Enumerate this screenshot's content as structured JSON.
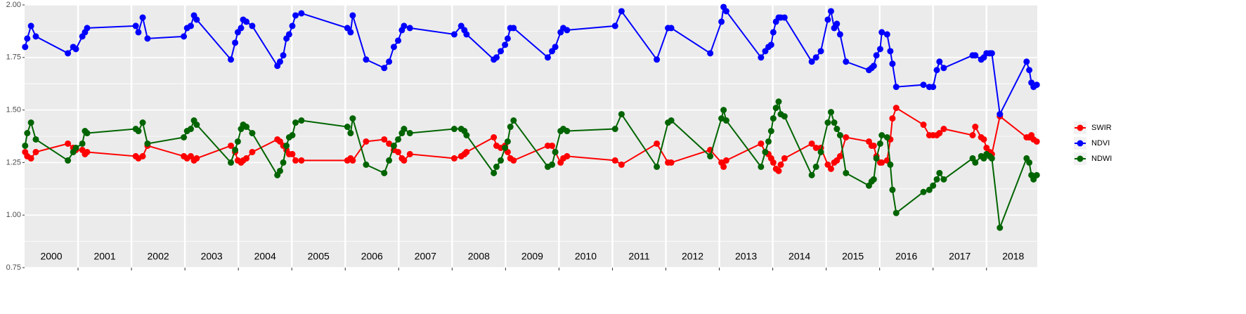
{
  "chart_data": {
    "type": "line",
    "x": [
      2000.01,
      2000.05,
      2000.12,
      2000.21,
      2000.81,
      2000.91,
      2000.96,
      2001.08,
      2001.13,
      2001.17,
      2002.08,
      2002.13,
      2002.21,
      2002.3,
      2002.98,
      2003.04,
      2003.11,
      2003.17,
      2003.22,
      2003.86,
      2003.94,
      2003.99,
      2004.05,
      2004.09,
      2004.15,
      2004.26,
      2004.73,
      2004.78,
      2004.84,
      2004.9,
      2004.95,
      2005.01,
      2005.07,
      2005.18,
      2006.04,
      2006.1,
      2006.14,
      2006.39,
      2006.73,
      2006.82,
      2006.91,
      2006.99,
      2007.06,
      2007.1,
      2007.21,
      2008.04,
      2008.17,
      2008.23,
      2008.27,
      2008.78,
      2008.83,
      2008.91,
      2008.99,
      2009.04,
      2009.09,
      2009.15,
      2009.79,
      2009.87,
      2009.93,
      2010.03,
      2010.08,
      2010.15,
      2011.05,
      2011.17,
      2011.83,
      2012.04,
      2012.1,
      2012.83,
      2013.04,
      2013.08,
      2013.13,
      2013.78,
      2013.86,
      2013.92,
      2013.97,
      2014.01,
      2014.06,
      2014.11,
      2014.15,
      2014.22,
      2014.73,
      2014.81,
      2014.9,
      2015.03,
      2015.09,
      2015.15,
      2015.2,
      2015.26,
      2015.37,
      2015.8,
      2015.85,
      2015.89,
      2015.94,
      2016.01,
      2016.04,
      2016.14,
      2016.2,
      2016.24,
      2016.31,
      2016.82,
      2016.93,
      2017.0,
      2017.07,
      2017.12,
      2017.2,
      2017.74,
      2017.79,
      2017.9,
      2017.95,
      2018.0,
      2018.06,
      2018.1,
      2018.25,
      2018.75,
      2018.8,
      2018.84,
      2018.88,
      2018.94
    ],
    "series": [
      {
        "name": "SWIR",
        "color": "#ff0000",
        "values": [
          1.3,
          1.28,
          1.27,
          1.3,
          1.34,
          1.32,
          1.31,
          1.31,
          1.29,
          1.3,
          1.28,
          1.27,
          1.28,
          1.33,
          1.28,
          1.27,
          1.28,
          1.26,
          1.27,
          1.33,
          1.3,
          1.26,
          1.25,
          1.26,
          1.27,
          1.3,
          1.36,
          1.35,
          1.33,
          1.31,
          1.29,
          1.29,
          1.26,
          1.26,
          1.26,
          1.27,
          1.26,
          1.35,
          1.36,
          1.34,
          1.31,
          1.3,
          1.27,
          1.26,
          1.29,
          1.27,
          1.28,
          1.29,
          1.3,
          1.37,
          1.33,
          1.32,
          1.33,
          1.3,
          1.27,
          1.26,
          1.33,
          1.33,
          1.3,
          1.25,
          1.27,
          1.28,
          1.26,
          1.24,
          1.34,
          1.25,
          1.25,
          1.31,
          1.25,
          1.23,
          1.26,
          1.34,
          1.3,
          1.29,
          1.27,
          1.25,
          1.22,
          1.21,
          1.24,
          1.27,
          1.34,
          1.32,
          1.32,
          1.24,
          1.22,
          1.25,
          1.26,
          1.28,
          1.37,
          1.35,
          1.33,
          1.33,
          1.28,
          1.25,
          1.25,
          1.26,
          1.36,
          1.46,
          1.51,
          1.43,
          1.38,
          1.38,
          1.38,
          1.39,
          1.41,
          1.38,
          1.42,
          1.37,
          1.36,
          1.32,
          1.3,
          1.29,
          1.47,
          1.37,
          1.37,
          1.38,
          1.36,
          1.35
        ]
      },
      {
        "name": "NDVI",
        "color": "#0000ff",
        "values": [
          1.8,
          1.84,
          1.9,
          1.85,
          1.77,
          1.8,
          1.79,
          1.85,
          1.87,
          1.89,
          1.9,
          1.87,
          1.94,
          1.84,
          1.85,
          1.89,
          1.9,
          1.95,
          1.93,
          1.74,
          1.82,
          1.87,
          1.89,
          1.93,
          1.92,
          1.9,
          1.71,
          1.73,
          1.76,
          1.84,
          1.86,
          1.9,
          1.95,
          1.96,
          1.89,
          1.87,
          1.95,
          1.74,
          1.7,
          1.73,
          1.8,
          1.83,
          1.88,
          1.9,
          1.89,
          1.86,
          1.9,
          1.88,
          1.86,
          1.74,
          1.75,
          1.78,
          1.81,
          1.84,
          1.89,
          1.89,
          1.75,
          1.78,
          1.8,
          1.87,
          1.89,
          1.88,
          1.9,
          1.97,
          1.74,
          1.89,
          1.89,
          1.77,
          1.92,
          1.99,
          1.97,
          1.75,
          1.78,
          1.8,
          1.81,
          1.87,
          1.92,
          1.94,
          1.94,
          1.94,
          1.73,
          1.75,
          1.78,
          1.93,
          1.97,
          1.89,
          1.91,
          1.86,
          1.73,
          1.69,
          1.7,
          1.71,
          1.76,
          1.79,
          1.87,
          1.86,
          1.78,
          1.72,
          1.61,
          1.62,
          1.61,
          1.61,
          1.69,
          1.73,
          1.7,
          1.76,
          1.76,
          1.74,
          1.75,
          1.77,
          1.77,
          1.77,
          1.48,
          1.73,
          1.69,
          1.63,
          1.61,
          1.62
        ]
      },
      {
        "name": "NDWI",
        "color": "#006400",
        "values": [
          1.33,
          1.39,
          1.44,
          1.36,
          1.26,
          1.3,
          1.32,
          1.34,
          1.4,
          1.39,
          1.41,
          1.4,
          1.44,
          1.34,
          1.37,
          1.4,
          1.41,
          1.45,
          1.43,
          1.25,
          1.31,
          1.35,
          1.41,
          1.43,
          1.42,
          1.39,
          1.19,
          1.21,
          1.25,
          1.33,
          1.37,
          1.38,
          1.44,
          1.45,
          1.42,
          1.39,
          1.46,
          1.24,
          1.2,
          1.26,
          1.33,
          1.36,
          1.39,
          1.41,
          1.39,
          1.41,
          1.41,
          1.4,
          1.38,
          1.2,
          1.23,
          1.26,
          1.32,
          1.35,
          1.42,
          1.45,
          1.23,
          1.24,
          1.3,
          1.4,
          1.41,
          1.4,
          1.41,
          1.48,
          1.23,
          1.44,
          1.45,
          1.28,
          1.46,
          1.5,
          1.45,
          1.23,
          1.3,
          1.35,
          1.4,
          1.46,
          1.51,
          1.54,
          1.48,
          1.47,
          1.19,
          1.23,
          1.3,
          1.44,
          1.49,
          1.44,
          1.41,
          1.38,
          1.2,
          1.14,
          1.16,
          1.17,
          1.27,
          1.34,
          1.38,
          1.37,
          1.24,
          1.12,
          1.01,
          1.11,
          1.12,
          1.14,
          1.17,
          1.2,
          1.17,
          1.27,
          1.25,
          1.28,
          1.27,
          1.29,
          1.28,
          1.27,
          0.94,
          1.27,
          1.25,
          1.19,
          1.17,
          1.19
        ]
      }
    ],
    "xlim": [
      2000,
      2018.95
    ],
    "xticks": [
      2001,
      2002,
      2003,
      2004,
      2005,
      2006,
      2007,
      2008,
      2009,
      2010,
      2011,
      2012,
      2013,
      2014,
      2015,
      2016,
      2017,
      2018
    ],
    "year_labels": [
      {
        "value": 2000.5,
        "label": "2000"
      },
      {
        "value": 2001.5,
        "label": "2001"
      },
      {
        "value": 2002.5,
        "label": "2002"
      },
      {
        "value": 2003.5,
        "label": "2003"
      },
      {
        "value": 2004.5,
        "label": "2004"
      },
      {
        "value": 2005.5,
        "label": "2005"
      },
      {
        "value": 2006.5,
        "label": "2006"
      },
      {
        "value": 2007.5,
        "label": "2007"
      },
      {
        "value": 2008.5,
        "label": "2008"
      },
      {
        "value": 2009.5,
        "label": "2009"
      },
      {
        "value": 2010.5,
        "label": "2010"
      },
      {
        "value": 2011.5,
        "label": "2011"
      },
      {
        "value": 2012.5,
        "label": "2012"
      },
      {
        "value": 2013.5,
        "label": "2013"
      },
      {
        "value": 2014.5,
        "label": "2014"
      },
      {
        "value": 2015.5,
        "label": "2015"
      },
      {
        "value": 2016.5,
        "label": "2016"
      },
      {
        "value": 2017.5,
        "label": "2017"
      },
      {
        "value": 2018.5,
        "label": "2018"
      }
    ],
    "ylim": [
      0.75,
      2.0
    ],
    "yticks": [
      {
        "value": 0.75,
        "label": "0.75"
      },
      {
        "value": 1.0,
        "label": "1.00"
      },
      {
        "value": 1.25,
        "label": "1.25"
      },
      {
        "value": 1.5,
        "label": "1.50"
      },
      {
        "value": 1.75,
        "label": "1.75"
      },
      {
        "value": 2.0,
        "label": "2.00"
      }
    ],
    "grid": true,
    "legend": "right"
  }
}
